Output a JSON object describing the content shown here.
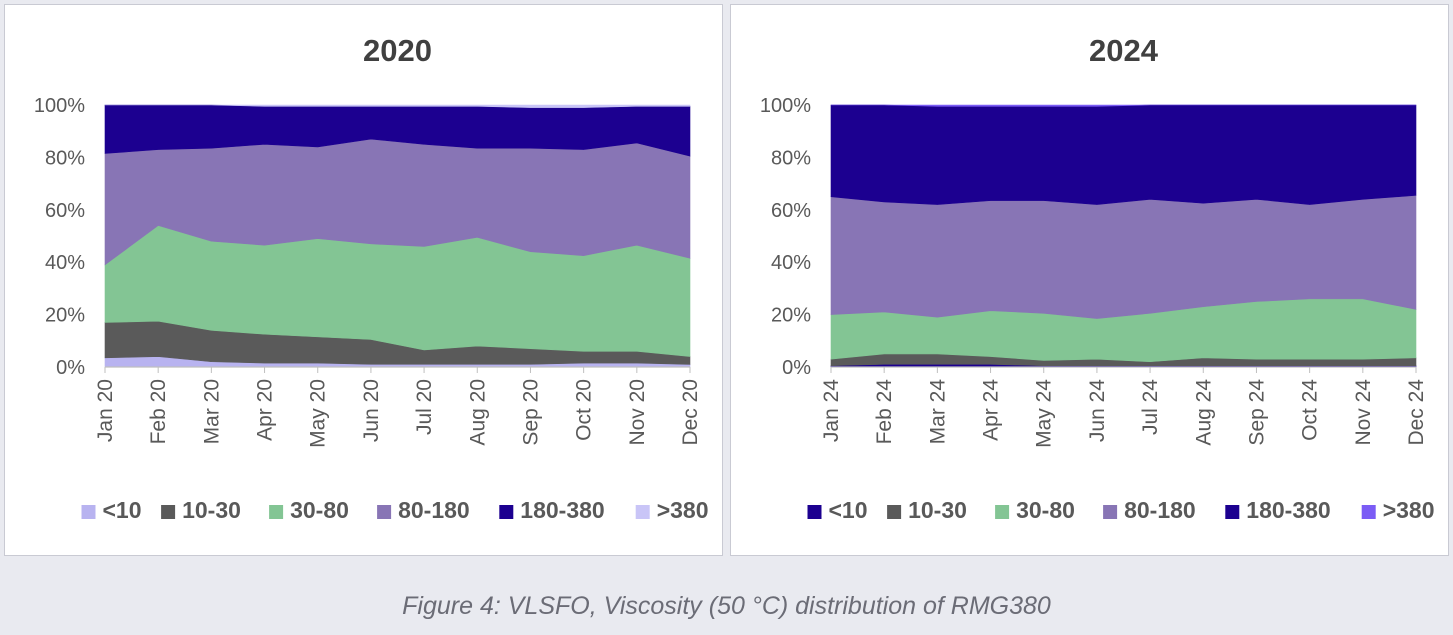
{
  "figure_caption": "Figure 4: VLSFO, Viscosity (50 °C) distribution of RMG380",
  "chart_data": [
    {
      "type": "area",
      "stacked": "percent",
      "title": "2020",
      "categories": [
        "Jan 20",
        "Feb 20",
        "Mar 20",
        "Apr 20",
        "May 20",
        "Jun 20",
        "Jul 20",
        "Aug 20",
        "Sep 20",
        "Oct 20",
        "Nov 20",
        "Dec 20"
      ],
      "ylim": [
        0,
        100
      ],
      "yticks": [
        "0%",
        "20%",
        "40%",
        "60%",
        "80%",
        "100%"
      ],
      "legend_position": "bottom",
      "series": [
        {
          "name": "<10",
          "color": "#b8b3f0",
          "values": [
            3.5,
            4,
            2,
            1.5,
            1.5,
            1,
            1,
            1,
            1,
            1.5,
            1.5,
            1
          ]
        },
        {
          "name": "10-30",
          "color": "#5a5a5a",
          "values": [
            13.5,
            13.5,
            12,
            11,
            10,
            9.5,
            5.5,
            7,
            6,
            4.5,
            4.5,
            3
          ]
        },
        {
          "name": "30-80",
          "color": "#83c594",
          "values": [
            22,
            36.5,
            34,
            34,
            37.5,
            36.5,
            39.5,
            41.5,
            37,
            36.5,
            40.5,
            37.5
          ]
        },
        {
          "name": "80-180",
          "color": "#8875b5",
          "values": [
            42.5,
            29,
            35.5,
            38.5,
            35,
            40,
            39,
            34,
            39.5,
            40.5,
            39,
            39
          ]
        },
        {
          "name": "180-380",
          "color": "#1c0090",
          "values": [
            18.5,
            17,
            16.5,
            14.5,
            15.5,
            12.5,
            14.5,
            16,
            15.5,
            16,
            14,
            19
          ]
        },
        {
          "name": ">380",
          "color": "#c9c5f7",
          "values": [
            0,
            0,
            0,
            0.5,
            0.5,
            0.5,
            0.5,
            0.5,
            1,
            1,
            0.5,
            0.5
          ]
        }
      ]
    },
    {
      "type": "area",
      "stacked": "percent",
      "title": "2024",
      "categories": [
        "Jan 24",
        "Feb 24",
        "Mar 24",
        "Apr 24",
        "May 24",
        "Jun 24",
        "Jul 24",
        "Aug 24",
        "Sep 24",
        "Oct 24",
        "Nov 24",
        "Dec 24"
      ],
      "ylim": [
        0,
        100
      ],
      "yticks": [
        "0%",
        "20%",
        "40%",
        "60%",
        "80%",
        "100%"
      ],
      "legend_position": "bottom",
      "series": [
        {
          "name": "<10",
          "color": "#1c0090",
          "values": [
            0.5,
            1,
            1,
            1,
            0.5,
            0.5,
            0.5,
            0.5,
            0.5,
            0.5,
            0.5,
            0.5
          ]
        },
        {
          "name": "10-30",
          "color": "#5a5a5a",
          "values": [
            2.5,
            4,
            4,
            3,
            2,
            2.5,
            1.5,
            3,
            2.5,
            2.5,
            2.5,
            3
          ]
        },
        {
          "name": "30-80",
          "color": "#83c594",
          "values": [
            17,
            16,
            14,
            17.5,
            18,
            15.5,
            18.5,
            19.5,
            22,
            23,
            23,
            18.5
          ]
        },
        {
          "name": "80-180",
          "color": "#8875b5",
          "values": [
            45,
            42,
            43,
            42,
            43,
            43.5,
            43.5,
            39.5,
            39,
            36,
            38,
            43.5
          ]
        },
        {
          "name": "180-380",
          "color": "#1c0090",
          "values": [
            35,
            37,
            37.5,
            36,
            36,
            37.5,
            36,
            37.5,
            36,
            38,
            36,
            34.5
          ]
        },
        {
          "name": ">380",
          "color": "#7b5cf5",
          "values": [
            0,
            0,
            0.5,
            0.5,
            0.5,
            0.5,
            0,
            0,
            0,
            0,
            0,
            0
          ]
        }
      ]
    }
  ]
}
